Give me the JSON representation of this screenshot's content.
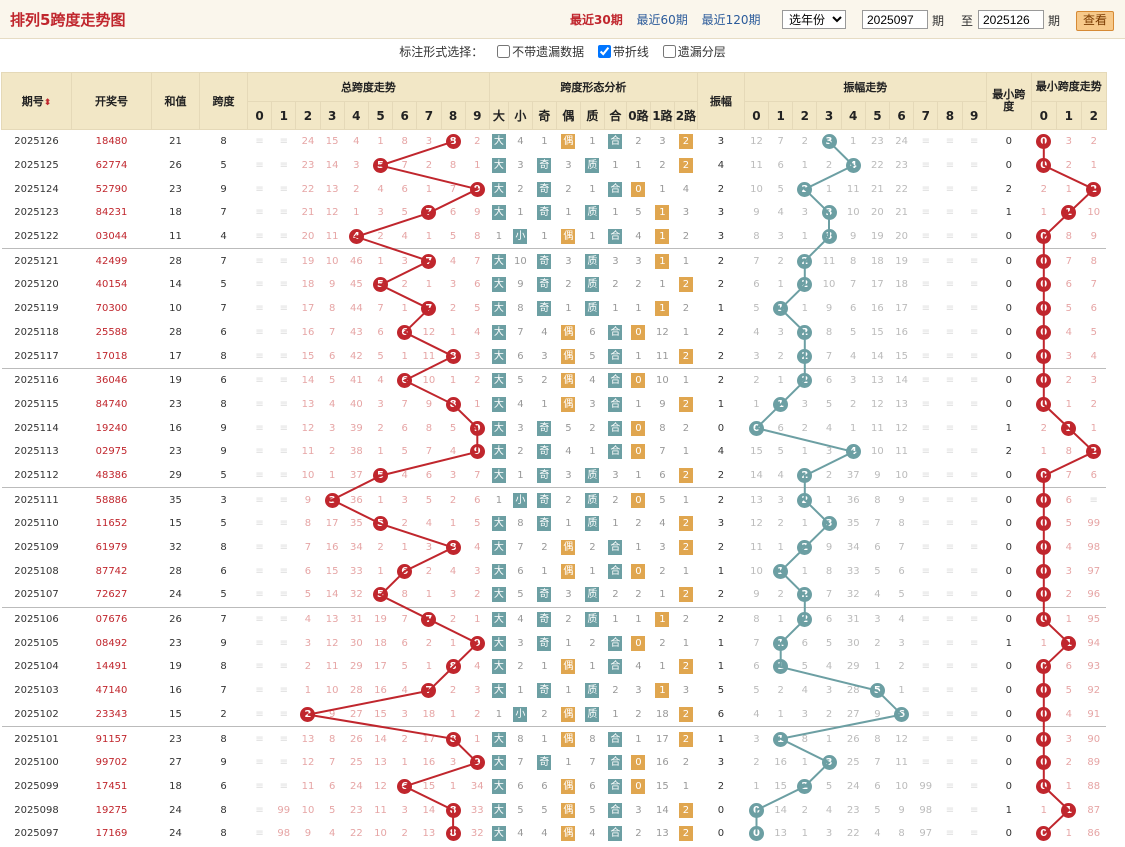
{
  "header": {
    "title": "排列5跨度走势图",
    "periods": [
      "最近30期",
      "最近60期",
      "最近120期"
    ],
    "year_select": "选年份",
    "from_value": "2025097",
    "from_label": "期",
    "to_prefix": "至",
    "to_value": "2025126",
    "to_label": "期",
    "query_label": "查看"
  },
  "options": {
    "label": "标注形式选择：",
    "items": [
      {
        "label": "不带遗漏数据",
        "checked": false
      },
      {
        "label": "带折线",
        "checked": true
      },
      {
        "label": "遗漏分层",
        "checked": false
      }
    ]
  },
  "columns": {
    "qihao": "期号",
    "open": "开奖号",
    "sum": "和值",
    "span": "跨度",
    "total_trend": "总跨度走势",
    "shape": "跨度形态分析",
    "amp": "振幅",
    "amp_trend": "振幅走势",
    "min_span": "最小跨度",
    "min_trend": "最小跨度走势",
    "shape_heads": [
      "大",
      "小",
      "奇",
      "偶",
      "质",
      "合",
      "0路",
      "1路",
      "2路"
    ]
  },
  "colors": {
    "red": "#c0262d",
    "teal": "#6c9fa3",
    "orange": "#e0a64f",
    "header_bg": "#f2e7c6"
  },
  "rows": [
    {
      "q": "2025126",
      "n": "18480",
      "s": "21",
      "sp": 8,
      "sm": [
        "≡",
        "≡",
        "24",
        "15",
        "4",
        "1",
        "8",
        "3",
        "",
        "2"
      ],
      "sh": [
        "大",
        "4",
        "1",
        "偶",
        "1",
        "合",
        "2",
        "3",
        "2"
      ],
      "a": 3,
      "am": [
        "12",
        "7",
        "2",
        "",
        "1",
        "23",
        "24",
        "≡",
        "≡",
        "≡"
      ],
      "m": 0,
      "mm": [
        "",
        "3",
        "2"
      ]
    },
    {
      "q": "2025125",
      "n": "62774",
      "s": "26",
      "sp": 5,
      "sm": [
        "≡",
        "≡",
        "23",
        "14",
        "3",
        "",
        "7",
        "2",
        "8",
        "1"
      ],
      "sh": [
        "大",
        "3",
        "奇",
        "3",
        "质",
        "1",
        "1",
        "2",
        "2"
      ],
      "a": 4,
      "am": [
        "11",
        "6",
        "1",
        "2",
        "",
        "22",
        "23",
        "≡",
        "≡",
        "≡"
      ],
      "m": 0,
      "mm": [
        "",
        "2",
        "1"
      ]
    },
    {
      "q": "2025124",
      "n": "52790",
      "s": "23",
      "sp": 9,
      "sm": [
        "≡",
        "≡",
        "22",
        "13",
        "2",
        "4",
        "6",
        "1",
        "7",
        ""
      ],
      "sh": [
        "大",
        "2",
        "奇",
        "2",
        "1",
        "合",
        "0",
        "1",
        "4"
      ],
      "a": 2,
      "am": [
        "10",
        "5",
        "",
        "1",
        "11",
        "21",
        "22",
        "≡",
        "≡",
        "≡"
      ],
      "m": 2,
      "mm": [
        "2",
        "1",
        ""
      ]
    },
    {
      "q": "2025123",
      "n": "84231",
      "s": "18",
      "sp": 7,
      "sm": [
        "≡",
        "≡",
        "21",
        "12",
        "1",
        "3",
        "5",
        "",
        "6",
        "9"
      ],
      "sh": [
        "大",
        "1",
        "奇",
        "1",
        "质",
        "1",
        "5",
        "1",
        "3"
      ],
      "a": 3,
      "am": [
        "9",
        "4",
        "3",
        "",
        "10",
        "20",
        "21",
        "≡",
        "≡",
        "≡"
      ],
      "m": 1,
      "mm": [
        "1",
        "",
        "10"
      ]
    },
    {
      "q": "2025122",
      "n": "03044",
      "s": "11",
      "sp": 4,
      "sm": [
        "≡",
        "≡",
        "20",
        "11",
        "",
        "2",
        "4",
        "1",
        "5",
        "8"
      ],
      "sh": [
        "1",
        "小",
        "1",
        "偶",
        "1",
        "合",
        "4",
        "1",
        "2"
      ],
      "a": 3,
      "am": [
        "8",
        "3",
        "1",
        "",
        "9",
        "19",
        "20",
        "≡",
        "≡",
        "≡"
      ],
      "m": 0,
      "mm": [
        "",
        "8",
        "9"
      ]
    },
    {
      "q": "2025121",
      "n": "42499",
      "s": "28",
      "sp": 7,
      "sm": [
        "≡",
        "≡",
        "19",
        "10",
        "46",
        "1",
        "3",
        "",
        "4",
        "7"
      ],
      "sh": [
        "大",
        "10",
        "奇",
        "3",
        "质",
        "3",
        "3",
        "1",
        "1"
      ],
      "a": 2,
      "am": [
        "7",
        "2",
        "",
        "11",
        "8",
        "18",
        "19",
        "≡",
        "≡",
        "≡"
      ],
      "m": 0,
      "mm": [
        "",
        "7",
        "8"
      ]
    },
    {
      "q": "2025120",
      "n": "40154",
      "s": "14",
      "sp": 5,
      "sm": [
        "≡",
        "≡",
        "18",
        "9",
        "45",
        "",
        "2",
        "1",
        "3",
        "6"
      ],
      "sh": [
        "大",
        "9",
        "奇",
        "2",
        "质",
        "2",
        "2",
        "1",
        "2"
      ],
      "a": 2,
      "am": [
        "6",
        "1",
        "",
        "10",
        "7",
        "17",
        "18",
        "≡",
        "≡",
        "≡"
      ],
      "m": 0,
      "mm": [
        "",
        "6",
        "7"
      ]
    },
    {
      "q": "2025119",
      "n": "70300",
      "s": "10",
      "sp": 7,
      "sm": [
        "≡",
        "≡",
        "17",
        "8",
        "44",
        "7",
        "1",
        "",
        "2",
        "5"
      ],
      "sh": [
        "大",
        "8",
        "奇",
        "1",
        "质",
        "1",
        "1",
        "1",
        "2"
      ],
      "a": 1,
      "am": [
        "5",
        "",
        "1",
        "9",
        "6",
        "16",
        "17",
        "≡",
        "≡",
        "≡"
      ],
      "m": 0,
      "mm": [
        "",
        "5",
        "6"
      ]
    },
    {
      "q": "2025118",
      "n": "25588",
      "s": "28",
      "sp": 6,
      "sm": [
        "≡",
        "≡",
        "16",
        "7",
        "43",
        "6",
        "",
        "12",
        "1",
        "4"
      ],
      "sh": [
        "大",
        "7",
        "4",
        "偶",
        "6",
        "合",
        "0",
        "12",
        "1"
      ],
      "a": 2,
      "am": [
        "4",
        "3",
        "",
        "8",
        "5",
        "15",
        "16",
        "≡",
        "≡",
        "≡"
      ],
      "m": 0,
      "mm": [
        "",
        "4",
        "5"
      ]
    },
    {
      "q": "2025117",
      "n": "17018",
      "s": "17",
      "sp": 8,
      "sm": [
        "≡",
        "≡",
        "15",
        "6",
        "42",
        "5",
        "1",
        "11",
        "",
        "3"
      ],
      "sh": [
        "大",
        "6",
        "3",
        "偶",
        "5",
        "合",
        "1",
        "11",
        "2"
      ],
      "a": 2,
      "am": [
        "3",
        "2",
        "",
        "7",
        "4",
        "14",
        "15",
        "≡",
        "≡",
        "≡"
      ],
      "m": 0,
      "mm": [
        "",
        "3",
        "4"
      ]
    },
    {
      "q": "2025116",
      "n": "36046",
      "s": "19",
      "sp": 6,
      "sm": [
        "≡",
        "≡",
        "14",
        "5",
        "41",
        "4",
        "",
        "10",
        "1",
        "2"
      ],
      "sh": [
        "大",
        "5",
        "2",
        "偶",
        "4",
        "合",
        "0",
        "10",
        "1"
      ],
      "a": 2,
      "am": [
        "2",
        "1",
        "",
        "6",
        "3",
        "13",
        "14",
        "≡",
        "≡",
        "≡"
      ],
      "m": 0,
      "mm": [
        "",
        "2",
        "3"
      ]
    },
    {
      "q": "2025115",
      "n": "84740",
      "s": "23",
      "sp": 8,
      "sm": [
        "≡",
        "≡",
        "13",
        "4",
        "40",
        "3",
        "7",
        "9",
        "",
        "1"
      ],
      "sh": [
        "大",
        "4",
        "1",
        "偶",
        "3",
        "合",
        "1",
        "9",
        "2"
      ],
      "a": 1,
      "am": [
        "1",
        "",
        "3",
        "5",
        "2",
        "12",
        "13",
        "≡",
        "≡",
        "≡"
      ],
      "m": 0,
      "mm": [
        "",
        "1",
        "2"
      ]
    },
    {
      "q": "2025114",
      "n": "19240",
      "s": "16",
      "sp": 9,
      "sm": [
        "≡",
        "≡",
        "12",
        "3",
        "39",
        "2",
        "6",
        "8",
        "5",
        ""
      ],
      "sh": [
        "大",
        "3",
        "奇",
        "5",
        "2",
        "合",
        "0",
        "8",
        "2"
      ],
      "a": 0,
      "am": [
        "",
        "6",
        "2",
        "4",
        "1",
        "11",
        "12",
        "≡",
        "≡",
        "≡"
      ],
      "m": 1,
      "mm": [
        "2",
        "",
        "1"
      ]
    },
    {
      "q": "2025113",
      "n": "02975",
      "s": "23",
      "sp": 9,
      "sm": [
        "≡",
        "≡",
        "11",
        "2",
        "38",
        "1",
        "5",
        "7",
        "4",
        ""
      ],
      "sh": [
        "大",
        "2",
        "奇",
        "4",
        "1",
        "合",
        "0",
        "7",
        "1"
      ],
      "a": 4,
      "am": [
        "15",
        "5",
        "1",
        "3",
        "",
        "10",
        "11",
        "≡",
        "≡",
        "≡"
      ],
      "m": 2,
      "mm": [
        "1",
        "8",
        ""
      ]
    },
    {
      "q": "2025112",
      "n": "48386",
      "s": "29",
      "sp": 5,
      "sm": [
        "≡",
        "≡",
        "10",
        "1",
        "37",
        "",
        "4",
        "6",
        "3",
        "7"
      ],
      "sh": [
        "大",
        "1",
        "奇",
        "3",
        "质",
        "3",
        "1",
        "6",
        "2"
      ],
      "a": 2,
      "am": [
        "14",
        "4",
        "",
        "2",
        "37",
        "9",
        "10",
        "≡",
        "≡",
        "≡"
      ],
      "m": 0,
      "mm": [
        "",
        "7",
        "6"
      ]
    },
    {
      "q": "2025111",
      "n": "58886",
      "s": "35",
      "sp": 3,
      "sm": [
        "≡",
        "≡",
        "9",
        "",
        "36",
        "1",
        "3",
        "5",
        "2",
        "6"
      ],
      "sh": [
        "1",
        "小",
        "奇",
        "2",
        "质",
        "2",
        "0",
        "5",
        "1"
      ],
      "a": 2,
      "am": [
        "13",
        "3",
        "",
        "1",
        "36",
        "8",
        "9",
        "≡",
        "≡",
        "≡"
      ],
      "m": 0,
      "mm": [
        "",
        "6",
        "≡"
      ]
    },
    {
      "q": "2025110",
      "n": "11652",
      "s": "15",
      "sp": 5,
      "sm": [
        "≡",
        "≡",
        "8",
        "17",
        "35",
        "",
        "2",
        "4",
        "1",
        "5"
      ],
      "sh": [
        "大",
        "8",
        "奇",
        "1",
        "质",
        "1",
        "2",
        "4",
        "2"
      ],
      "a": 3,
      "am": [
        "12",
        "2",
        "1",
        "",
        "35",
        "7",
        "8",
        "≡",
        "≡",
        "≡"
      ],
      "m": 0,
      "mm": [
        "",
        "5",
        "99"
      ]
    },
    {
      "q": "2025109",
      "n": "61979",
      "s": "32",
      "sp": 8,
      "sm": [
        "≡",
        "≡",
        "7",
        "16",
        "34",
        "2",
        "1",
        "3",
        "",
        "4"
      ],
      "sh": [
        "大",
        "7",
        "2",
        "偶",
        "2",
        "合",
        "1",
        "3",
        "2"
      ],
      "a": 2,
      "am": [
        "11",
        "1",
        "",
        "9",
        "34",
        "6",
        "7",
        "≡",
        "≡",
        "≡"
      ],
      "m": 0,
      "mm": [
        "",
        "4",
        "98"
      ]
    },
    {
      "q": "2025108",
      "n": "87742",
      "s": "28",
      "sp": 6,
      "sm": [
        "≡",
        "≡",
        "6",
        "15",
        "33",
        "1",
        "",
        "2",
        "4",
        "3"
      ],
      "sh": [
        "大",
        "6",
        "1",
        "偶",
        "1",
        "合",
        "0",
        "2",
        "1"
      ],
      "a": 1,
      "am": [
        "10",
        "",
        "1",
        "8",
        "33",
        "5",
        "6",
        "≡",
        "≡",
        "≡"
      ],
      "m": 0,
      "mm": [
        "",
        "3",
        "97"
      ]
    },
    {
      "q": "2025107",
      "n": "72627",
      "s": "24",
      "sp": 5,
      "sm": [
        "≡",
        "≡",
        "5",
        "14",
        "32",
        "",
        "8",
        "1",
        "3",
        "2"
      ],
      "sh": [
        "大",
        "5",
        "奇",
        "3",
        "质",
        "2",
        "2",
        "1",
        "2"
      ],
      "a": 2,
      "am": [
        "9",
        "2",
        "",
        "7",
        "32",
        "4",
        "5",
        "≡",
        "≡",
        "≡"
      ],
      "m": 0,
      "mm": [
        "",
        "2",
        "96"
      ]
    },
    {
      "q": "2025106",
      "n": "07676",
      "s": "26",
      "sp": 7,
      "sm": [
        "≡",
        "≡",
        "4",
        "13",
        "31",
        "19",
        "7",
        "",
        "2",
        "1"
      ],
      "sh": [
        "大",
        "4",
        "奇",
        "2",
        "质",
        "1",
        "1",
        "1",
        "2"
      ],
      "a": 2,
      "am": [
        "8",
        "1",
        "2",
        "6",
        "31",
        "3",
        "4",
        "≡",
        "≡",
        "≡"
      ],
      "m": 0,
      "mm": [
        "",
        "1",
        "95"
      ]
    },
    {
      "q": "2025105",
      "n": "08492",
      "s": "23",
      "sp": 9,
      "sm": [
        "≡",
        "≡",
        "3",
        "12",
        "30",
        "18",
        "6",
        "2",
        "1",
        ""
      ],
      "sh": [
        "大",
        "3",
        "奇",
        "1",
        "2",
        "合",
        "0",
        "2",
        "1"
      ],
      "a": 1,
      "am": [
        "7",
        "",
        "6",
        "5",
        "30",
        "2",
        "3",
        "≡",
        "≡",
        "≡"
      ],
      "m": 1,
      "mm": [
        "1",
        "",
        "94"
      ]
    },
    {
      "q": "2025104",
      "n": "14491",
      "s": "19",
      "sp": 8,
      "sm": [
        "≡",
        "≡",
        "2",
        "11",
        "29",
        "17",
        "5",
        "1",
        "",
        "4"
      ],
      "sh": [
        "大",
        "2",
        "1",
        "偶",
        "1",
        "合",
        "4",
        "1",
        "2"
      ],
      "a": 1,
      "am": [
        "6",
        "",
        "5",
        "4",
        "29",
        "1",
        "2",
        "≡",
        "≡",
        "≡"
      ],
      "m": 0,
      "mm": [
        "",
        "6",
        "93"
      ]
    },
    {
      "q": "2025103",
      "n": "47140",
      "s": "16",
      "sp": 7,
      "sm": [
        "≡",
        "≡",
        "1",
        "10",
        "28",
        "16",
        "4",
        "",
        "2",
        "3"
      ],
      "sh": [
        "大",
        "1",
        "奇",
        "1",
        "质",
        "2",
        "3",
        "1",
        "3"
      ],
      "a": 5,
      "am": [
        "5",
        "2",
        "4",
        "3",
        "28",
        "",
        "1",
        "≡",
        "≡",
        "≡"
      ],
      "m": 0,
      "mm": [
        "",
        "5",
        "92"
      ]
    },
    {
      "q": "2025102",
      "n": "23343",
      "s": "15",
      "sp": 2,
      "sm": [
        "≡",
        "≡",
        "",
        "9",
        "27",
        "15",
        "3",
        "18",
        "1",
        "2"
      ],
      "sh": [
        "1",
        "小",
        "2",
        "偶",
        "质",
        "1",
        "2",
        "18",
        "2"
      ],
      "a": 6,
      "am": [
        "4",
        "1",
        "3",
        "2",
        "27",
        "9",
        "",
        "≡",
        "≡",
        "≡"
      ],
      "m": 0,
      "mm": [
        "",
        "4",
        "91"
      ]
    },
    {
      "q": "2025101",
      "n": "91157",
      "s": "23",
      "sp": 8,
      "sm": [
        "≡",
        "≡",
        "13",
        "8",
        "26",
        "14",
        "2",
        "17",
        "",
        "1"
      ],
      "sh": [
        "大",
        "8",
        "1",
        "偶",
        "8",
        "合",
        "1",
        "17",
        "2"
      ],
      "a": 1,
      "am": [
        "3",
        "",
        "8",
        "1",
        "26",
        "8",
        "12",
        "≡",
        "≡",
        "≡"
      ],
      "m": 0,
      "mm": [
        "",
        "3",
        "90"
      ]
    },
    {
      "q": "2025100",
      "n": "99702",
      "s": "27",
      "sp": 9,
      "sm": [
        "≡",
        "≡",
        "12",
        "7",
        "25",
        "13",
        "1",
        "16",
        "3",
        ""
      ],
      "sh": [
        "大",
        "7",
        "奇",
        "1",
        "7",
        "合",
        "0",
        "16",
        "2"
      ],
      "a": 3,
      "am": [
        "2",
        "16",
        "1",
        "",
        "25",
        "7",
        "11",
        "≡",
        "≡",
        "≡"
      ],
      "m": 0,
      "mm": [
        "",
        "2",
        "89"
      ]
    },
    {
      "q": "2025099",
      "n": "17451",
      "s": "18",
      "sp": 6,
      "sm": [
        "≡",
        "≡",
        "11",
        "6",
        "24",
        "12",
        "",
        "15",
        "1",
        "34"
      ],
      "sh": [
        "大",
        "6",
        "6",
        "偶",
        "6",
        "合",
        "0",
        "15",
        "1"
      ],
      "a": 2,
      "am": [
        "1",
        "15",
        "",
        "5",
        "24",
        "6",
        "10",
        "99",
        "≡",
        "≡"
      ],
      "m": 0,
      "mm": [
        "",
        "1",
        "88"
      ]
    },
    {
      "q": "2025098",
      "n": "19275",
      "s": "24",
      "sp": 8,
      "sm": [
        "≡",
        "99",
        "10",
        "5",
        "23",
        "11",
        "3",
        "14",
        "",
        "33"
      ],
      "sh": [
        "大",
        "5",
        "5",
        "偶",
        "5",
        "合",
        "3",
        "14",
        "2"
      ],
      "a": 0,
      "am": [
        "",
        "14",
        "2",
        "4",
        "23",
        "5",
        "9",
        "98",
        "≡",
        "≡"
      ],
      "m": 1,
      "mm": [
        "1",
        "",
        "87"
      ]
    },
    {
      "q": "2025097",
      "n": "17169",
      "s": "24",
      "sp": 8,
      "sm": [
        "≡",
        "98",
        "9",
        "4",
        "22",
        "10",
        "2",
        "13",
        "",
        "32"
      ],
      "sh": [
        "大",
        "4",
        "4",
        "偶",
        "4",
        "合",
        "2",
        "13",
        "2"
      ],
      "a": 0,
      "am": [
        "",
        "13",
        "1",
        "3",
        "22",
        "4",
        "8",
        "97",
        "≡",
        "≡"
      ],
      "m": 0,
      "mm": [
        "",
        "1",
        "86"
      ]
    }
  ]
}
